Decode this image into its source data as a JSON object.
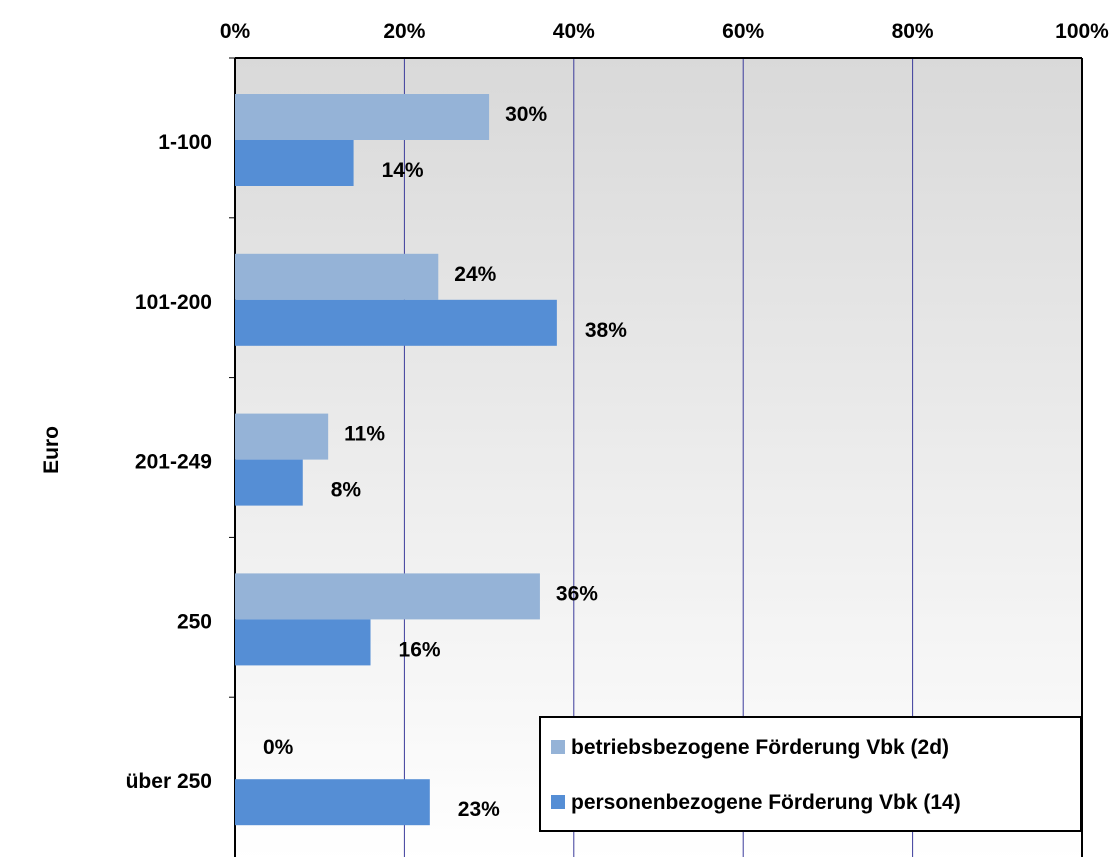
{
  "chart_data": {
    "type": "bar",
    "orientation": "horizontal",
    "ylabel": "Euro",
    "xlabel": "",
    "xlim": [
      0,
      100
    ],
    "x_ticks": [
      0,
      20,
      40,
      60,
      80,
      100
    ],
    "x_tick_labels": [
      "0%",
      "20%",
      "40%",
      "60%",
      "80%",
      "100%"
    ],
    "x_axis_position": "top",
    "grid": "vertical",
    "categories": [
      "1-100",
      "101-200",
      "201-249",
      "250",
      "über 250"
    ],
    "series": [
      {
        "name": "betriebsbezogene Förderung Vbk (2d)",
        "color": "#95b3d7",
        "values": [
          30,
          24,
          11,
          36,
          0
        ],
        "data_labels": [
          "30%",
          "24%",
          "11%",
          "36%",
          "0%"
        ]
      },
      {
        "name": "personenbezogene Förderung Vbk (14)",
        "color": "#558ed5",
        "values": [
          14,
          38,
          8,
          16,
          23
        ],
        "data_labels": [
          "14%",
          "38%",
          "8%",
          "16%",
          "23%"
        ]
      }
    ],
    "legend_position": "bottom-right",
    "gridline_color": "#3b3b9b",
    "background": "gradient grey to white"
  }
}
